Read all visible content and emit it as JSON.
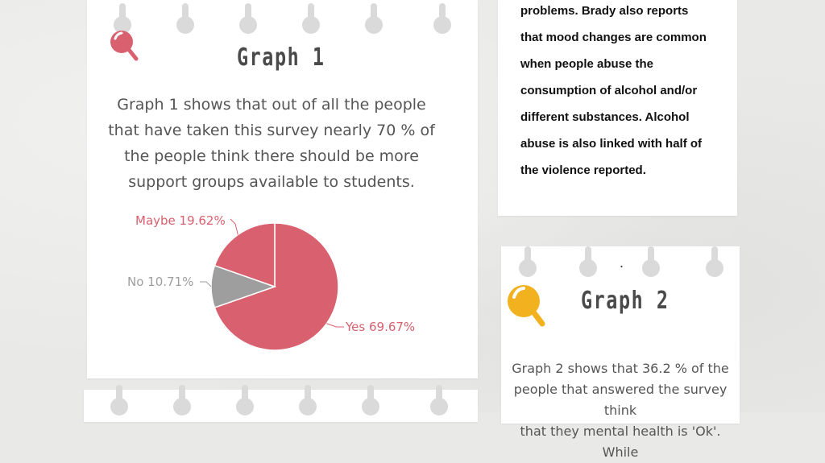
{
  "colors": {
    "background": "#e9e9e7",
    "card": "#ffffff",
    "pie_yes": "#d9606e",
    "pie_maybe": "#d9606e",
    "pie_no": "#9e9e9e",
    "icon_red": "#d9606e",
    "icon_yellow": "#f2b21f"
  },
  "card1": {
    "heading": "Graph 1",
    "icon": "magnifier-icon",
    "paragraph_lines": [
      "Graph 1 shows that out of all the people",
      "that have taken this survey nearly 70 % of",
      "the people think there should be more",
      "support groups available to students."
    ]
  },
  "card_right_top": {
    "lines": [
      "problems. Brady also reports",
      "that mood changes are common",
      "when people abuse the",
      "consumption of alcohol and/or",
      "different substances. Alcohol",
      "abuse is also linked with half of",
      "the violence reported."
    ]
  },
  "card2": {
    "dot": ".",
    "heading": "Graph 2",
    "icon": "magnifier-icon",
    "paragraph_lines": [
      "Graph 2 shows that 36.2 % of the",
      "people that answered the survey think",
      "that they mental health is 'Ok'. While"
    ]
  },
  "chart_data": {
    "type": "pie",
    "slices": [
      {
        "label": "Yes",
        "value": 69.67,
        "display": "Yes 69.67%"
      },
      {
        "label": "No",
        "value": 10.71,
        "display": "No 10.71%"
      },
      {
        "label": "Maybe",
        "value": 19.62,
        "display": "Maybe 19.62%"
      }
    ]
  }
}
